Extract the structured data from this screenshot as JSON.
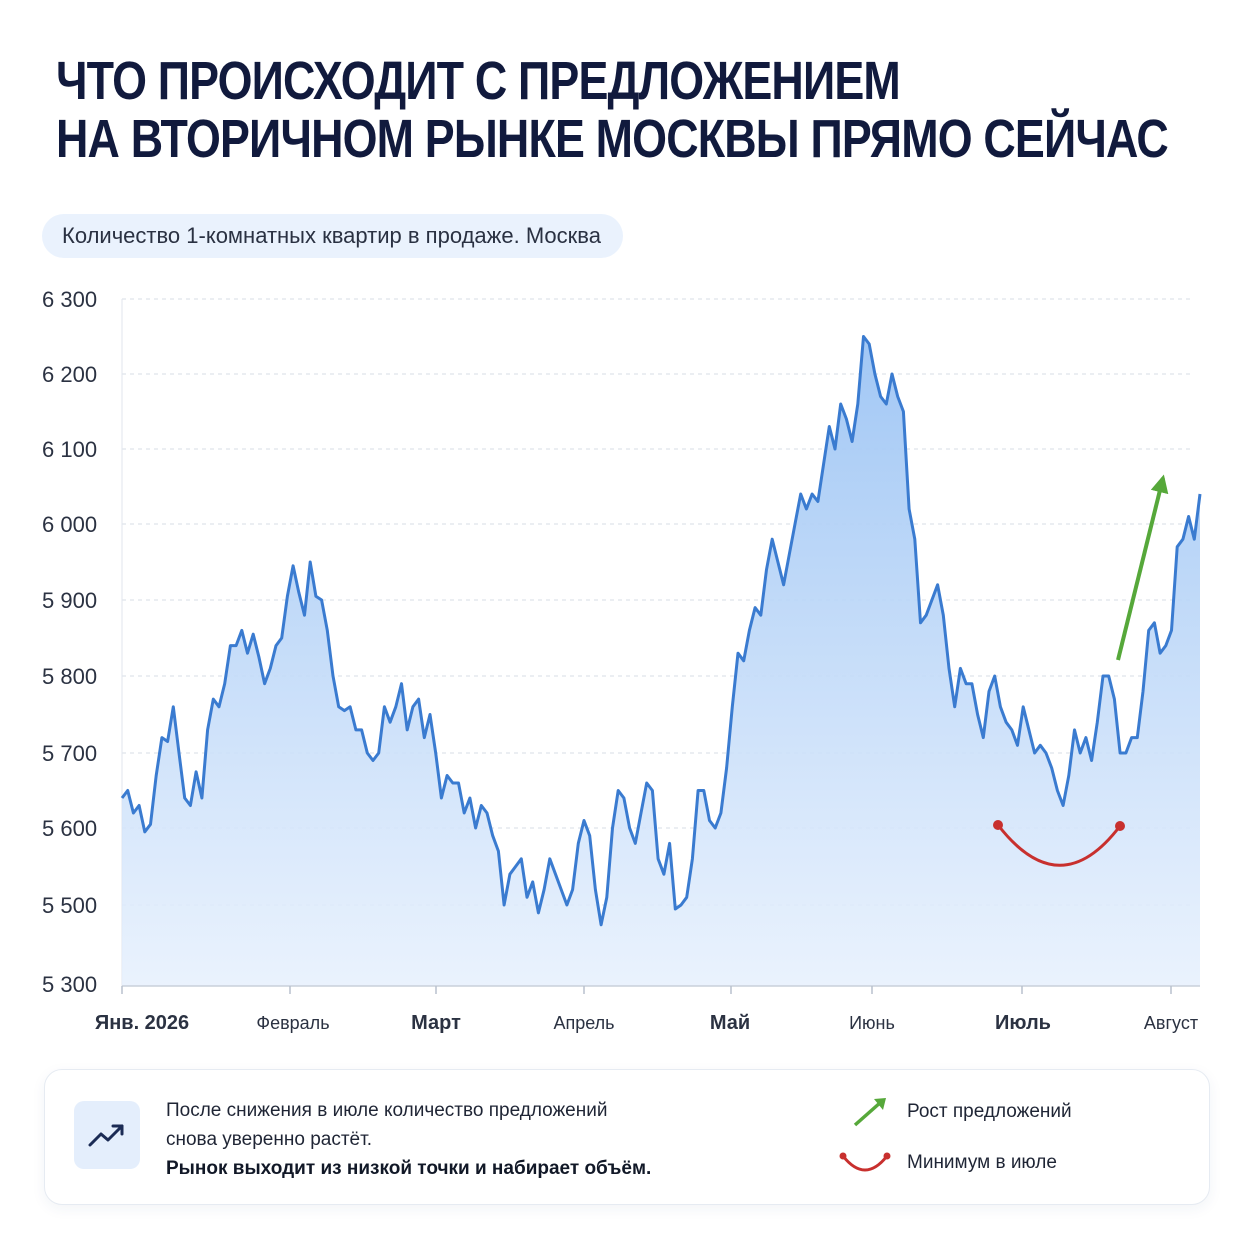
{
  "header": {
    "title_line1": "ЧТО ПРОИСХОДИТ С ПРЕДЛОЖЕНИЕМ",
    "title_line2": "НА ВТОРИЧНОМ РЫНКЕ МОСКВЫ ПРЯМО СЕЙЧАС"
  },
  "chart_data": {
    "type": "area",
    "title": "Количество 1-комнатных квартир в продаже. Москва",
    "xlabel": "",
    "ylabel": "",
    "y_ticks": [
      "6 300",
      "6 200",
      "6 100",
      "6 000",
      "5 900",
      "5 800",
      "5 700",
      "5 600",
      "5 500",
      "5 300"
    ],
    "x_ticks": [
      "Янв. 2026",
      "Февраль",
      "Март",
      "Апрель",
      "Май",
      "Июнь",
      "Июль",
      "Август"
    ],
    "bold_x_ticks": [
      "Янв. 2026",
      "Март",
      "Май",
      "Июль"
    ],
    "grid": "horizontal dashed",
    "colors": {
      "line": "#3a7bd0",
      "fill": "#a9ccf6",
      "up_arrow": "#56a83a",
      "dip_arc": "#c8302e"
    },
    "series": [
      {
        "values": [
          5640,
          5650,
          5620,
          5630,
          5595,
          5605,
          5670,
          5720,
          5715,
          5760,
          5700,
          5640,
          5630,
          5675,
          5640,
          5730,
          5770,
          5760,
          5790,
          5840,
          5840,
          5860,
          5830,
          5855,
          5825,
          5790,
          5810,
          5840,
          5850,
          5905,
          5945,
          5910,
          5880,
          5950,
          5905,
          5900,
          5860,
          5800,
          5760,
          5755,
          5760,
          5730,
          5730,
          5700,
          5690,
          5700,
          5760,
          5740,
          5760,
          5790,
          5730,
          5760,
          5770,
          5720,
          5750,
          5700,
          5640,
          5670,
          5660,
          5660,
          5620,
          5640,
          5600,
          5630,
          5620,
          5590,
          5570,
          5500,
          5540,
          5550,
          5560,
          5510,
          5530,
          5480,
          5520,
          5560,
          5540,
          5520,
          5500,
          5520,
          5580,
          5610,
          5590,
          5520,
          5450,
          5510,
          5600,
          5650,
          5640,
          5600,
          5580,
          5620,
          5660,
          5650,
          5560,
          5540,
          5580,
          5490,
          5500,
          5510,
          5560,
          5650,
          5650,
          5610,
          5600,
          5620,
          5680,
          5760,
          5830,
          5820,
          5860,
          5890,
          5880,
          5940,
          5980,
          5950,
          5920,
          5960,
          6000,
          6040,
          6020,
          6040,
          6030,
          6080,
          6130,
          6100,
          6160,
          6140,
          6110,
          6160,
          6250,
          6240,
          6200,
          6170,
          6160,
          6200,
          6170,
          6150,
          6020,
          5980,
          5870,
          5880,
          5900,
          5920,
          5880,
          5810,
          5760,
          5810,
          5790,
          5790,
          5750,
          5720,
          5780,
          5800,
          5760,
          5740,
          5730,
          5710,
          5760,
          5730,
          5700,
          5710,
          5700,
          5680,
          5650,
          5630,
          5670,
          5730,
          5700,
          5720,
          5690,
          5740,
          5800,
          5800,
          5770,
          5700,
          5700,
          5720,
          5720,
          5780,
          5860,
          5870,
          5830,
          5840,
          5860,
          5970,
          5980,
          6010,
          5980,
          6040
        ]
      }
    ],
    "annotations": {
      "growth_arrow": "Рост предложений",
      "dip_arc": "Минимум в июле"
    }
  },
  "summary": {
    "line1": "После снижения в июле количество предложений",
    "line2": "снова уверенно растёт.",
    "line3_bold": "Рынок выходит из низкой точки и набирает объём."
  },
  "legend": {
    "growth": "Рост предложений",
    "minimum": "Минимум в июле"
  }
}
